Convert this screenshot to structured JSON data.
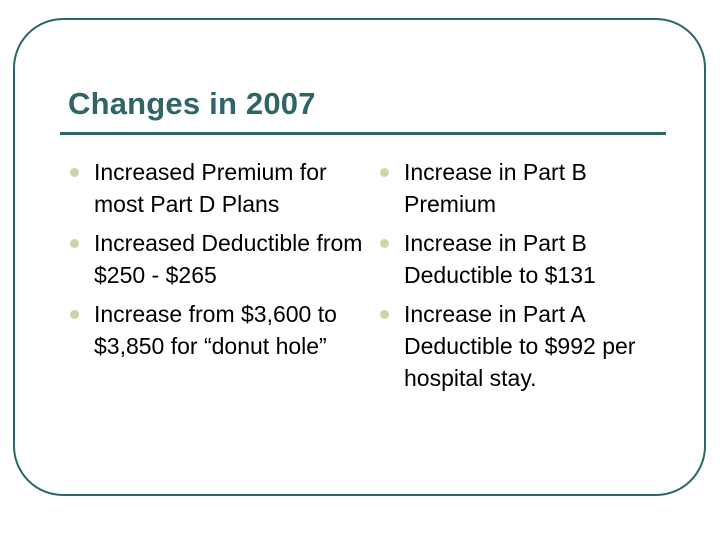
{
  "slide": {
    "title": "Changes in 2007",
    "colors": {
      "accent": "#2f6567",
      "bullet": "#cfd4a8",
      "text": "#000000"
    },
    "left_bullets": [
      "Increased Premium for most Part D Plans",
      "Increased Deductible from $250 - $265",
      "Increase from $3,600 to $3,850 for “donut hole”"
    ],
    "right_bullets": [
      "Increase in Part B Premium",
      "Increase in Part B Deductible to $131",
      "Increase in Part A Deductible to $992 per hospital stay."
    ]
  }
}
